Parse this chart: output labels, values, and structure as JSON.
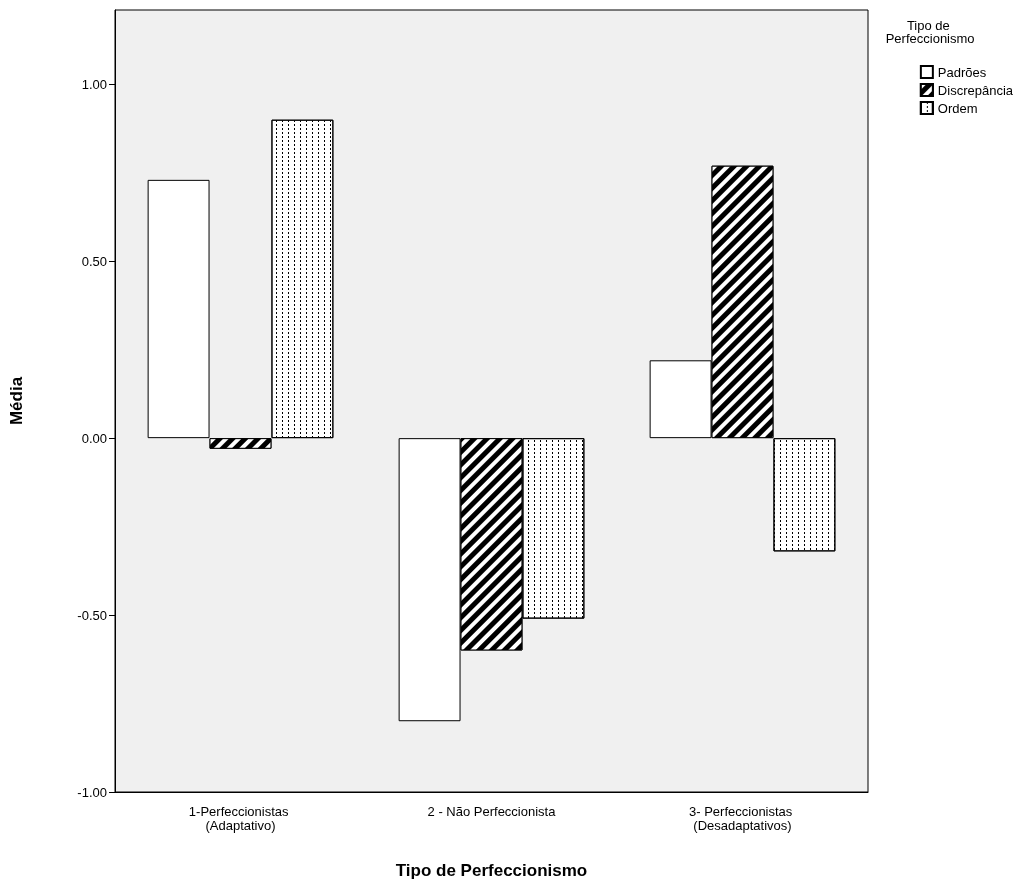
{
  "chart_data": {
    "type": "bar",
    "xlabel": "Tipo de Perfeccionismo",
    "ylabel": "Média",
    "legend_title": "Tipo de Perfeccionismo",
    "categories": [
      "1-Perfeccionistas (Adaptativo)",
      "2 - Não Perfeccionista",
      "3- Perfeccionistas (Desadaptativos)"
    ],
    "series": [
      {
        "name": "Padrões",
        "color": "#ffffff",
        "values": [
          0.73,
          -0.8,
          0.22
        ]
      },
      {
        "name": "Discrepância",
        "color": "#000000",
        "values": [
          -0.03,
          -0.6,
          0.77
        ]
      },
      {
        "name": "Ordem",
        "color": "#ffffff",
        "values": [
          0.9,
          -0.51,
          -0.32
        ]
      }
    ],
    "ylim": [
      -1,
      1.21
    ],
    "yticks": [
      {
        "value": -1,
        "label": "-1.00"
      },
      {
        "value": -0.5,
        "label": "-0.50"
      },
      {
        "value": 0,
        "label": "0.00"
      },
      {
        "value": 0.5,
        "label": "0.50"
      },
      {
        "value": 1,
        "label": "1.00"
      }
    ],
    "grid": false,
    "legend": "top right"
  }
}
